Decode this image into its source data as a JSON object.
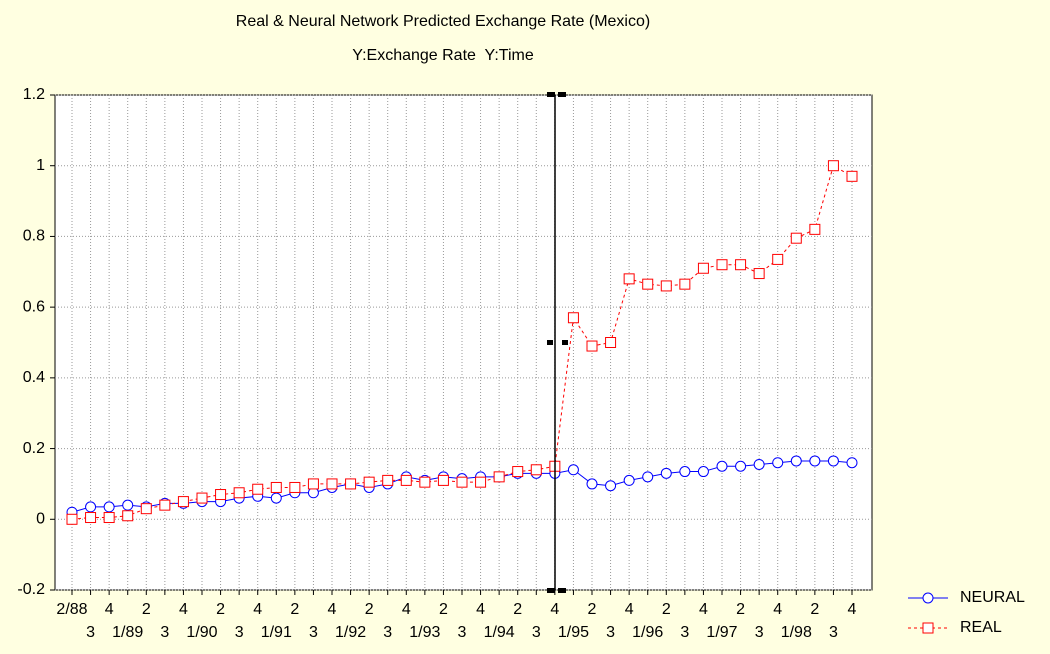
{
  "chart_data": {
    "type": "line",
    "title": "Real & Neural Network Predicted Exchange Rate (Mexico)",
    "subtitle": "Y:Exchange Rate  Y:Time",
    "categories": [
      "2/88",
      "3",
      "4",
      "1/89",
      "2",
      "3",
      "4",
      "1/90",
      "2",
      "3",
      "4",
      "1/91",
      "2",
      "3",
      "4",
      "1/92",
      "2",
      "3",
      "4",
      "1/93",
      "2",
      "3",
      "4",
      "1/94",
      "2",
      "3",
      "4",
      "1/95",
      "2",
      "3",
      "4",
      "1/96",
      "2",
      "3",
      "4",
      "1/97",
      "2",
      "3",
      "4",
      "1/98",
      "2",
      "3",
      "4"
    ],
    "series": [
      {
        "name": "NEURAL",
        "color": "#0000ff",
        "values": [
          0.02,
          0.035,
          0.035,
          0.04,
          0.035,
          0.045,
          0.045,
          0.05,
          0.05,
          0.06,
          0.065,
          0.06,
          0.075,
          0.075,
          0.09,
          0.1,
          0.09,
          0.1,
          0.12,
          0.11,
          0.12,
          0.115,
          0.12,
          0.12,
          0.13,
          0.13,
          0.13,
          0.14,
          0.1,
          0.095,
          0.11,
          0.12,
          0.13,
          0.135,
          0.135,
          0.15,
          0.15,
          0.155,
          0.16,
          0.165,
          0.165,
          0.165,
          0.16
        ]
      },
      {
        "name": "REAL",
        "color": "#ff0000",
        "values": [
          0,
          0.005,
          0.005,
          0.01,
          0.03,
          0.04,
          0.05,
          0.06,
          0.07,
          0.075,
          0.085,
          0.09,
          0.09,
          0.1,
          0.1,
          0.1,
          0.105,
          0.11,
          0.11,
          0.105,
          0.11,
          0.105,
          0.105,
          0.12,
          0.135,
          0.14,
          0.15,
          0.57,
          0.49,
          0.5,
          0.68,
          0.665,
          0.66,
          0.665,
          0.71,
          0.72,
          0.72,
          0.695,
          0.735,
          0.795,
          0.82,
          1.0,
          0.97
        ]
      }
    ],
    "ylim": [
      -0.2,
      1.2
    ],
    "yticks": [
      1.2,
      1,
      0.8,
      0.6,
      0.4,
      0.2,
      0,
      -0.2
    ],
    "grid": true
  }
}
